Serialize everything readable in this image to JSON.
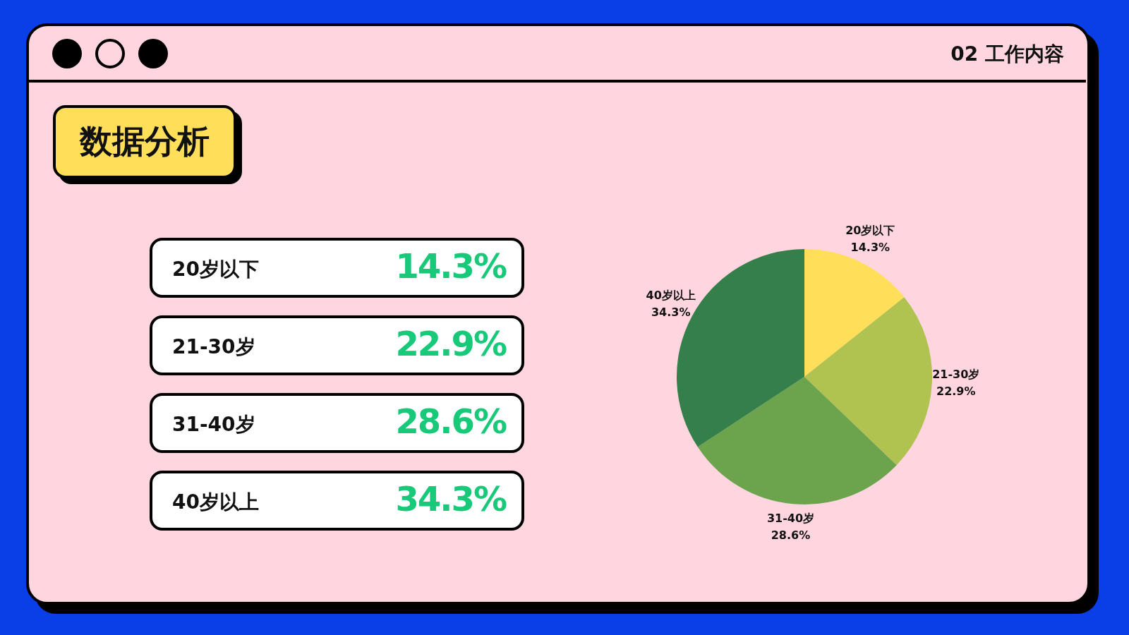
{
  "chart_data": {
    "type": "pie",
    "title": "数据分析",
    "annotations": [
      "02 工作内容"
    ],
    "categories": [
      "20岁以下",
      "21-30岁",
      "31-40岁",
      "40岁以上"
    ],
    "values": [
      14.3,
      22.9,
      28.6,
      34.3
    ],
    "value_labels": [
      "14.3%",
      "22.9%",
      "28.6%",
      "34.3%"
    ],
    "colors": [
      "#ffde59",
      "#b0c24f",
      "#6ca34d",
      "#357f4b"
    ]
  }
}
